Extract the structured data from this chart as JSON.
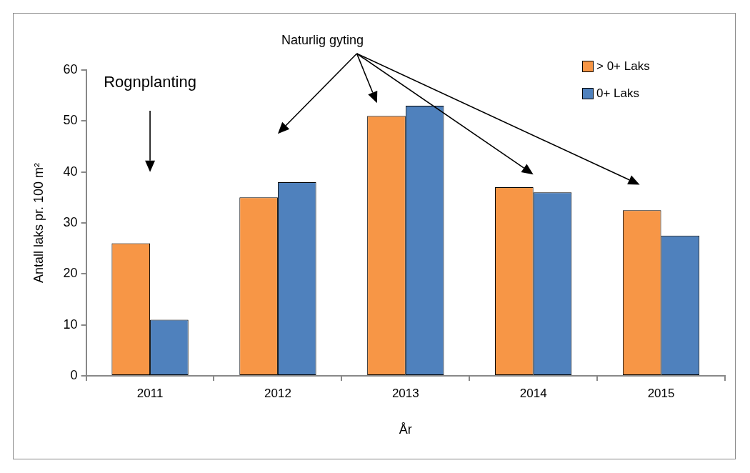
{
  "chart_data": {
    "type": "bar",
    "xlabel": "År",
    "ylabel": "Antall laks pr. 100 m²",
    "categories": [
      "2011",
      "2012",
      "2013",
      "2014",
      "2015"
    ],
    "series": [
      {
        "name": "> 0+ Laks",
        "color": "#f79646",
        "values": [
          26,
          35,
          51,
          37,
          32.5
        ]
      },
      {
        "name": "0+ Laks",
        "color": "#4f81bd",
        "values": [
          11,
          38,
          53,
          36,
          27.5
        ]
      }
    ],
    "ylim": [
      0,
      60
    ],
    "yticks": [
      0,
      10,
      20,
      30,
      40,
      50,
      60
    ],
    "legend": "top right",
    "annotations": [
      "Rognplanting",
      "Naturlig gyting"
    ]
  }
}
